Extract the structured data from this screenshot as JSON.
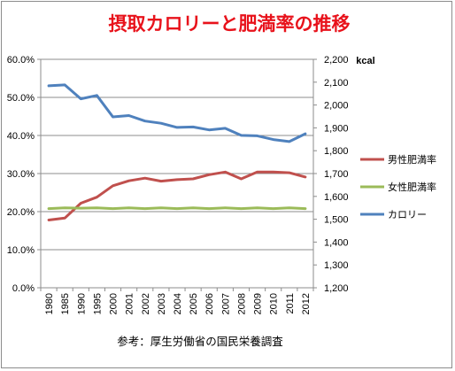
{
  "chart_data": {
    "type": "line",
    "title": "摂取カロリーと肥満率の推移",
    "source_note": "参考：厚生労働省の国民栄養調査",
    "x": [
      "1980",
      "1985",
      "1990",
      "1995",
      "2000",
      "2001",
      "2002",
      "2003",
      "2004",
      "2005",
      "2006",
      "2007",
      "2008",
      "2009",
      "2010",
      "2011",
      "2012"
    ],
    "y_left": {
      "ticks": [
        "0.0%",
        "10.0%",
        "20.0%",
        "30.0%",
        "40.0%",
        "50.0%",
        "60.0%"
      ],
      "ylim": [
        0,
        0.6
      ]
    },
    "y_right": {
      "unit": "kcal",
      "ticks": [
        "1,200",
        "1,300",
        "1,400",
        "1,500",
        "1,600",
        "1,700",
        "1,800",
        "1,900",
        "2,000",
        "2,100",
        "2,200"
      ],
      "ylim": [
        1200,
        2200
      ]
    },
    "series": [
      {
        "name": "男性肥満率",
        "axis": "left",
        "color": "#c0504d",
        "values": [
          0.178,
          0.183,
          0.222,
          0.238,
          0.268,
          0.281,
          0.288,
          0.28,
          0.284,
          0.286,
          0.297,
          0.304,
          0.286,
          0.304,
          0.304,
          0.302,
          0.291
        ]
      },
      {
        "name": "女性肥満率",
        "axis": "left",
        "color": "#9bbb59",
        "values": [
          0.208,
          0.21,
          0.209,
          0.21,
          0.208,
          0.21,
          0.208,
          0.21,
          0.208,
          0.21,
          0.208,
          0.21,
          0.208,
          0.21,
          0.208,
          0.21,
          0.208
        ]
      },
      {
        "name": "カロリー",
        "axis": "right",
        "color": "#4f81bd",
        "values": [
          2084,
          2088,
          2027,
          2042,
          1948,
          1954,
          1930,
          1920,
          1902,
          1904,
          1891,
          1898,
          1867,
          1865,
          1849,
          1840,
          1874
        ]
      }
    ],
    "grid": true,
    "legend_position": "right"
  }
}
